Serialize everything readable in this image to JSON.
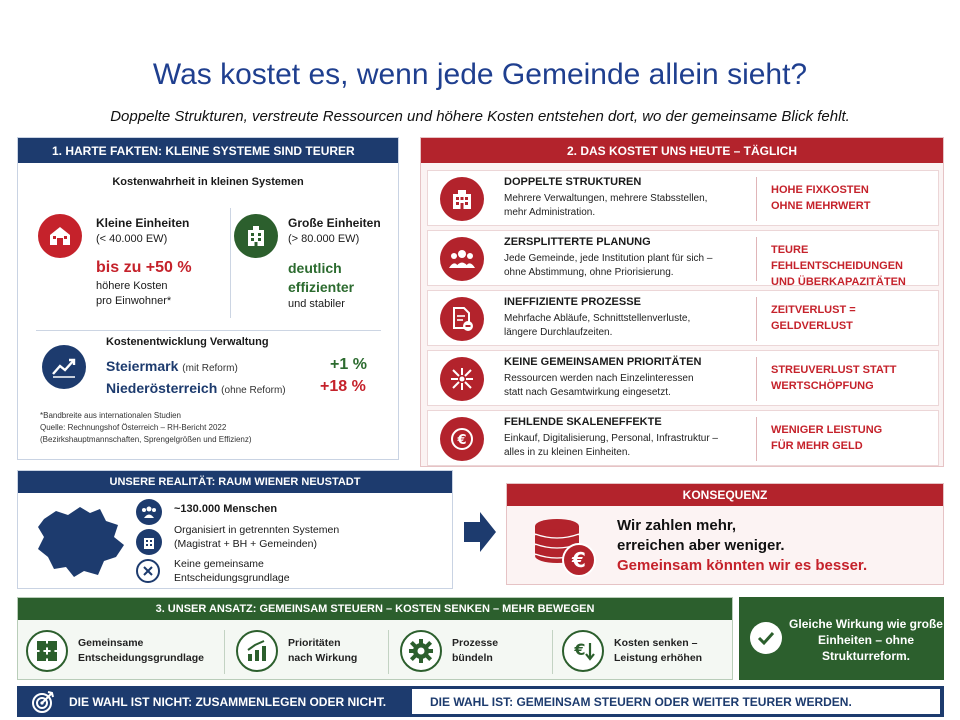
{
  "title": "Was kostet es, wenn jede Gemeinde allein sieht?",
  "subtitle": "Doppelte Strukturen, verstreute Ressourcen und höhere Kosten entstehen dort, wo der gemeinsame Blick fehlt.",
  "facts": {
    "heading": "1. HARTE FAKTEN: KLEINE SYSTEME SIND TEURER",
    "subheading": "Kostenwahrheit in kleinen Systemen",
    "small": {
      "label": "Kleine Einheiten",
      "range": "(< 40.000 EW)",
      "value": "bis zu +50 %",
      "desc1": "höhere Kosten",
      "desc2": "pro Einwohner*"
    },
    "large": {
      "label": "Große Einheiten",
      "range": "(> 80.000 EW)",
      "value1": "deutlich",
      "value2": "effizienter",
      "desc": "und stabiler"
    },
    "development": {
      "heading": "Kostenentwicklung Verwaltung",
      "rows": [
        {
          "region": "Steiermark",
          "note": "(mit Reform)",
          "value": "+1 %",
          "color": "#2c6b2f"
        },
        {
          "region": "Niederösterreich",
          "note": "(ohne Reform)",
          "value": "+18 %",
          "color": "#c5222b"
        }
      ]
    },
    "notes": [
      "*Bandbreite aus internationalen Studien",
      "Quelle: Rechnungshof Österreich – RH-Bericht 2022",
      "(Bezirkshauptmannschaften, Sprengelgrößen und Effizienz)"
    ]
  },
  "costs": {
    "heading": "2. DAS KOSTET UNS HEUTE – TÄGLICH",
    "rows": [
      {
        "icon": "building-icon",
        "title": "DOPPELTE STRUKTUREN",
        "desc1": "Mehrere Verwaltungen, mehrere Stabsstellen,",
        "desc2": "mehr Administration.",
        "result1": "HOHE FIXKOSTEN",
        "result2": "OHNE MEHRWERT"
      },
      {
        "icon": "people-icon",
        "title": "ZERSPLITTERTE PLANUNG",
        "desc1": "Jede Gemeinde, jede Institution plant für sich –",
        "desc2": "ohne Abstimmung, ohne Priorisierung.",
        "result1": "TEURE FEHLENTSCHEIDUNGEN",
        "result2": "UND ÜBERKAPAZITÄTEN"
      },
      {
        "icon": "document-minus-icon",
        "title": "INEFFIZIENTE PROZESSE",
        "desc1": "Mehrfache Abläufe, Schnittstellenverluste,",
        "desc2": "längere Durchlaufzeiten.",
        "result1": "ZEITVERLUST =",
        "result2": "GELDVERLUST"
      },
      {
        "icon": "scatter-arrows-icon",
        "title": "KEINE GEMEINSAMEN PRIORITÄTEN",
        "desc1": "Ressourcen werden nach Einzelinteressen",
        "desc2": "statt nach Gesamtwirkung eingesetzt.",
        "result1": "STREUVERLUST STATT",
        "result2": "WERTSCHÖPFUNG"
      },
      {
        "icon": "euro-coin-icon",
        "title": "FEHLENDE SKALENEFFEKTE",
        "desc1": "Einkauf, Digitalisierung, Personal, Infrastruktur –",
        "desc2": "alles in zu kleinen Einheiten.",
        "result1": "WENIGER LEISTUNG",
        "result2": "FÜR MEHR GELD"
      }
    ]
  },
  "reality": {
    "heading": "UNSERE REALITÄT: RAUM WIENER NEUSTADT",
    "people": "~130.000 Menschen",
    "systems1": "Organisiert in getrennten Systemen",
    "systems2": "(Magistrat + BH + Gemeinden)",
    "basis1": "Keine gemeinsame",
    "basis2": "Entscheidungsgrundlage"
  },
  "consequence": {
    "heading": "KONSEQUENZ",
    "line1": "Wir zahlen mehr,",
    "line2": "erreichen aber weniger.",
    "line3": "Gemeinsam könnten wir es besser."
  },
  "approach": {
    "heading": "3. UNSER ANSATZ: GEMEINSAM STEUERN – KOSTEN SENKEN – MEHR BEWEGEN",
    "items": [
      {
        "icon": "puzzle-icon",
        "line1": "Gemeinsame",
        "line2": "Entscheidungsgrundlage"
      },
      {
        "icon": "growth-chart-icon",
        "line1": "Prioritäten",
        "line2": "nach Wirkung"
      },
      {
        "icon": "gear-icon",
        "line1": "Prozesse",
        "line2": "bündeln"
      },
      {
        "icon": "euro-down-icon",
        "line1": "Kosten senken –",
        "line2": "Leistung erhöhen"
      }
    ],
    "result": "Gleiche Wirkung wie große Einheiten – ohne Strukturreform."
  },
  "bottom": {
    "left": "DIE WAHL IST NICHT: ZUSAMMENLEGEN ODER NICHT.",
    "right": "DIE WAHL IST: GEMEINSAM STEUERN ODER WEITER TEURER WERDEN."
  },
  "colors": {
    "navy": "#1d3b6e",
    "red": "#b3232c",
    "green": "#2c5f2d"
  }
}
